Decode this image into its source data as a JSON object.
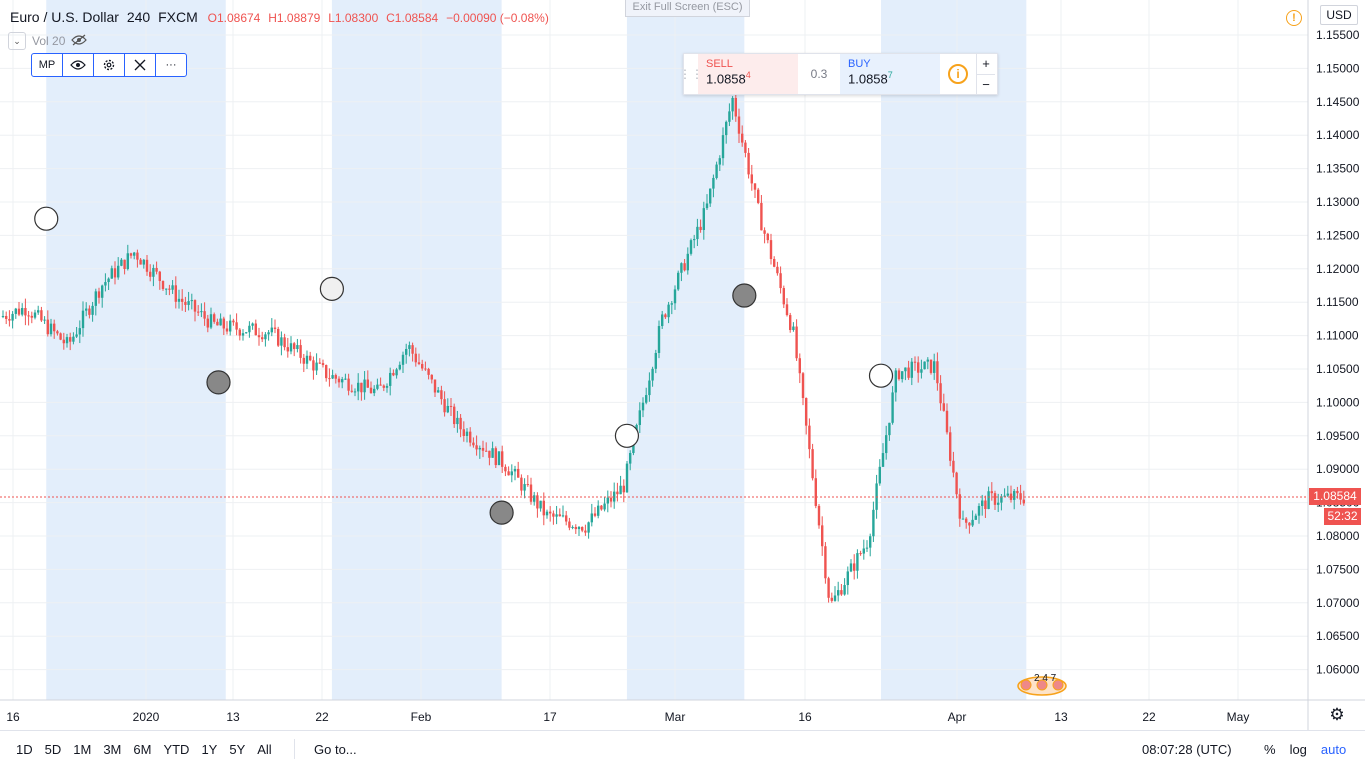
{
  "header": {
    "symbol": "Euro / U.S. Dollar",
    "interval": "240",
    "exchange": "FXCM",
    "open": "O1.08674",
    "high": "H1.08879",
    "low": "L1.08300",
    "close": "C1.08584",
    "change": "−0.00090 (−0.08%)"
  },
  "volume_label": "Vol 20",
  "drawing_toolbar": {
    "mp_label": "MP"
  },
  "exit_fullscreen": "Exit Full Screen (ESC)",
  "trade_panel": {
    "sell_label": "SELL",
    "sell_price": "1.0858",
    "sell_pip": "4",
    "spread": "0.3",
    "buy_label": "BUY",
    "buy_price": "1.0858",
    "buy_pip": "7",
    "plus": "+",
    "minus": "−"
  },
  "currency": "USD",
  "last_price": "1.08584",
  "countdown": "52:32",
  "badge_text": "2 4 7",
  "bottom": {
    "periods": [
      "1D",
      "5D",
      "1M",
      "3M",
      "6M",
      "YTD",
      "1Y",
      "5Y",
      "All"
    ],
    "goto": "Go to...",
    "clock": "08:07:28 (UTC)",
    "percent": "%",
    "log": "log",
    "auto": "auto"
  },
  "colors": {
    "up": "#26a69a",
    "down": "#ef5350",
    "session": "#e3eefb",
    "grid": "#eef0f3"
  },
  "chart_data": {
    "type": "candlestick",
    "title": "Euro / U.S. Dollar",
    "ylim": [
      1.055,
      1.1575
    ],
    "y_ticks": [
      "1.15500",
      "1.15000",
      "1.14500",
      "1.14000",
      "1.13500",
      "1.13000",
      "1.12500",
      "1.12000",
      "1.11500",
      "1.11000",
      "1.10500",
      "1.10000",
      "1.09500",
      "1.09000",
      "1.08500",
      "1.08000",
      "1.07500",
      "1.07000",
      "1.06500",
      "1.06000"
    ],
    "x_ticks": [
      "16",
      "2020",
      "13",
      "22",
      "Feb",
      "17",
      "Mar",
      "16",
      "Apr",
      "13",
      "22",
      "May"
    ],
    "trend": [
      {
        "t": "Dec 13",
        "v": 1.112
      },
      {
        "t": "Dec 18",
        "v": 1.1142
      },
      {
        "t": "Dec 23",
        "v": 1.1085
      },
      {
        "t": "Dec 27",
        "v": 1.1175
      },
      {
        "t": "Jan 1",
        "v": 1.1225
      },
      {
        "t": "Jan 7",
        "v": 1.1155
      },
      {
        "t": "Jan 12",
        "v": 1.1115
      },
      {
        "t": "Jan 18",
        "v": 1.1105
      },
      {
        "t": "Jan 24",
        "v": 1.104
      },
      {
        "t": "Jan 29",
        "v": 1.1015
      },
      {
        "t": "Feb 1",
        "v": 1.1085
      },
      {
        "t": "Feb 7",
        "v": 1.0965
      },
      {
        "t": "Feb 13",
        "v": 1.0905
      },
      {
        "t": "Feb 18",
        "v": 1.083
      },
      {
        "t": "Feb 22",
        "v": 1.0815
      },
      {
        "t": "Feb 26",
        "v": 1.0875
      },
      {
        "t": "Mar 1",
        "v": 1.1125
      },
      {
        "t": "Mar 6",
        "v": 1.129
      },
      {
        "t": "Mar 9",
        "v": 1.1455
      },
      {
        "t": "Mar 12",
        "v": 1.1285
      },
      {
        "t": "Mar 16",
        "v": 1.1105
      },
      {
        "t": "Mar 20",
        "v": 1.0695
      },
      {
        "t": "Mar 24",
        "v": 1.0795
      },
      {
        "t": "Mar 27",
        "v": 1.1045
      },
      {
        "t": "Mar 31",
        "v": 1.1055
      },
      {
        "t": "Apr 3",
        "v": 1.0815
      },
      {
        "t": "Apr 6",
        "v": 1.0855
      },
      {
        "t": "Apr 10",
        "v": 1.0858
      }
    ],
    "last_price": 1.08584,
    "session_bands": [
      [
        "Dec 20",
        "Jan 13"
      ],
      [
        "Jan 24",
        "Feb 12"
      ],
      [
        "Feb 26",
        "Mar 10"
      ],
      [
        "Mar 25",
        "Apr 10"
      ]
    ],
    "markers": [
      {
        "t": "Dec 20",
        "v": 1.1275,
        "fill": "#ffffff"
      },
      {
        "t": "Jan 12",
        "v": 1.103,
        "fill": "#888888"
      },
      {
        "t": "Jan 24",
        "v": 1.117,
        "fill": "#f0f0f0"
      },
      {
        "t": "Feb 12",
        "v": 1.0835,
        "fill": "#888888"
      },
      {
        "t": "Feb 26",
        "v": 1.095,
        "fill": "#ffffff"
      },
      {
        "t": "Mar 10",
        "v": 1.116,
        "fill": "#888888"
      },
      {
        "t": "Mar 25",
        "v": 1.104,
        "fill": "#ffffff"
      }
    ]
  }
}
